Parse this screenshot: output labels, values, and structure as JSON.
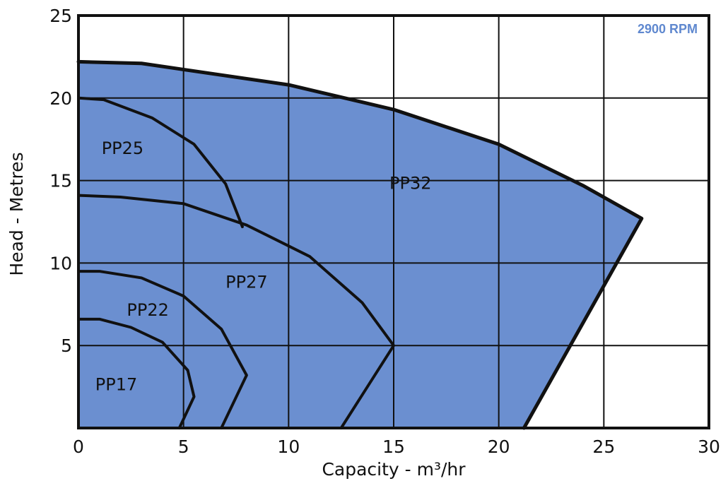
{
  "chart_data": {
    "type": "area",
    "speed_label": "2900 RPM",
    "xlabel": "Capacity - m³/hr",
    "ylabel": "Head - Metres",
    "xlim": [
      0,
      30
    ],
    "ylim": [
      0,
      25
    ],
    "x_ticks": [
      "0",
      "5",
      "10",
      "15",
      "20",
      "25",
      "30"
    ],
    "y_ticks": [
      "5",
      "10",
      "15",
      "20",
      "25"
    ],
    "grid": true,
    "fill_color": "#6b8fd0",
    "speed_label_color": "#5f88cf",
    "series": [
      {
        "name": "PP32",
        "points": [
          [
            0,
            22.2
          ],
          [
            3,
            22.1
          ],
          [
            10,
            20.8
          ],
          [
            15,
            19.3
          ],
          [
            20,
            17.2
          ],
          [
            24,
            14.7
          ],
          [
            26.8,
            12.7
          ],
          [
            21.2,
            0
          ]
        ]
      },
      {
        "name": "PP25",
        "points": [
          [
            0,
            20
          ],
          [
            1.2,
            19.9
          ],
          [
            3.5,
            18.8
          ],
          [
            5.5,
            17.2
          ],
          [
            7,
            14.8
          ],
          [
            7.8,
            12.2
          ]
        ]
      },
      {
        "name": "PP27",
        "points": [
          [
            0,
            14.1
          ],
          [
            2,
            14.0
          ],
          [
            5,
            13.6
          ],
          [
            8,
            12.3
          ],
          [
            11,
            10.4
          ],
          [
            13.5,
            7.6
          ],
          [
            15.0,
            5
          ],
          [
            12.5,
            0
          ]
        ]
      },
      {
        "name": "PP22",
        "points": [
          [
            0,
            9.5
          ],
          [
            1,
            9.5
          ],
          [
            3,
            9.1
          ],
          [
            5,
            8.0
          ],
          [
            6.8,
            6.0
          ],
          [
            8.0,
            3.2
          ],
          [
            6.8,
            0
          ]
        ]
      },
      {
        "name": "PP17",
        "points": [
          [
            0,
            6.6
          ],
          [
            1,
            6.6
          ],
          [
            2.5,
            6.1
          ],
          [
            4,
            5.2
          ],
          [
            5.2,
            3.5
          ],
          [
            5.5,
            1.9
          ],
          [
            4.8,
            0
          ]
        ]
      }
    ],
    "region_labels": [
      {
        "text": "PP32",
        "x": 14.8,
        "y": 14.5
      },
      {
        "text": "PP25",
        "x": 1.1,
        "y": 16.6
      },
      {
        "text": "PP27",
        "x": 7.0,
        "y": 8.5
      },
      {
        "text": "PP22",
        "x": 2.3,
        "y": 6.8
      },
      {
        "text": "PP17",
        "x": 0.8,
        "y": 2.3
      }
    ]
  }
}
